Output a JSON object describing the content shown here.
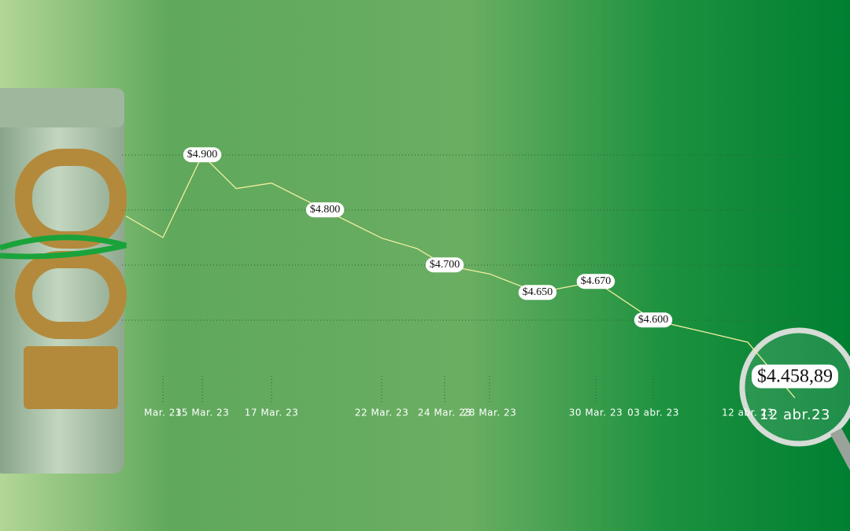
{
  "chart_data": {
    "type": "line",
    "categories": [
      null,
      "Mar. 23",
      "15 Mar. 23",
      null,
      "17 Mar. 23",
      null,
      "22 Mar. 23",
      null,
      "24 Mar. 23",
      "28 Mar. 23",
      null,
      "30 Mar. 23",
      "03 abr. 23",
      null,
      "12 abr. 23",
      "12 abr.23"
    ],
    "series": [
      {
        "color": "#f2efa0",
        "values": [
          4789,
          4750,
          4900,
          4839,
          4849,
          4800,
          4749,
          4730,
          4700,
          4684,
          4650,
          4670,
          4600,
          4577,
          4560,
          4458.89
        ],
        "value_labels": [
          null,
          null,
          "$4.900",
          null,
          null,
          "$4.800",
          null,
          null,
          "$4.700",
          null,
          "$4.650",
          "$4.670",
          "$4.600",
          null,
          null,
          "$4.458,89"
        ]
      }
    ],
    "ylim": [
      4400,
      5050
    ],
    "yticks": [
      4600,
      4700,
      4800,
      4900
    ],
    "grid": true
  }
}
